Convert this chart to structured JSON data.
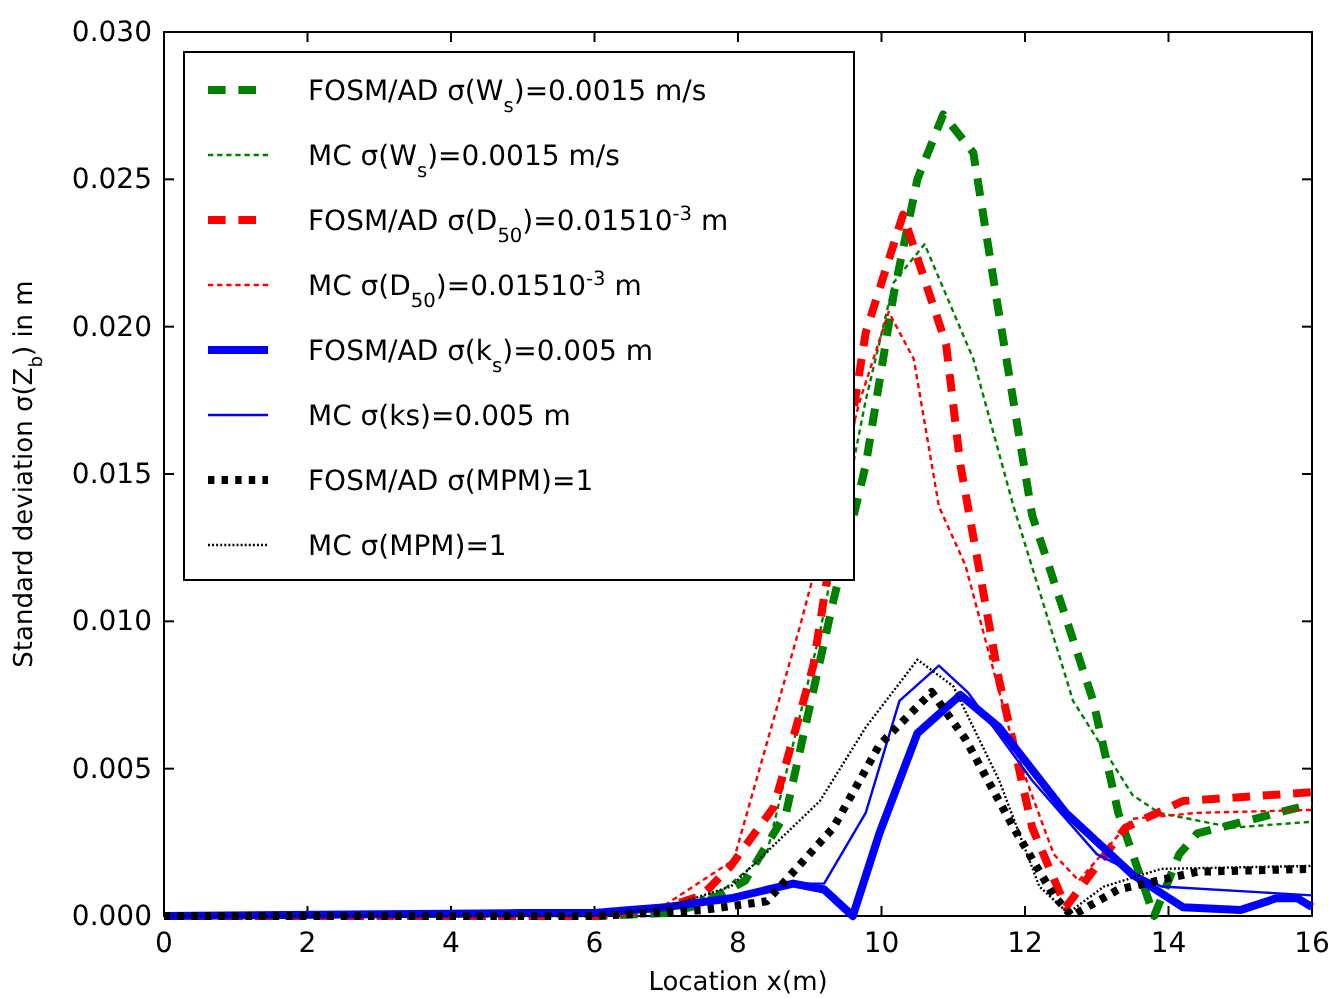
{
  "chart_data": {
    "type": "line",
    "xlabel": "Location x(m)",
    "ylabel": "Standard deviation σ(Z$_{b}$) in m",
    "xlim": [
      0,
      16
    ],
    "ylim": [
      0,
      0.03
    ],
    "xticks": [
      0,
      2,
      4,
      6,
      8,
      10,
      12,
      14,
      16
    ],
    "yticks": [
      {
        "value": 0,
        "label": "0.000"
      },
      {
        "value": 0.005,
        "label": "0.005"
      },
      {
        "value": 0.01,
        "label": "0.010"
      },
      {
        "value": 0.015,
        "label": "0.015"
      },
      {
        "value": 0.02,
        "label": "0.020"
      },
      {
        "value": 0.025,
        "label": "0.025"
      },
      {
        "value": 0.03,
        "label": "0.030"
      }
    ],
    "grid": false,
    "legend": "top left",
    "marker": "none",
    "series": [
      {
        "name": "FOSM/AD σ(W$_{s}$)=0.0015 m/s",
        "color": "#008000",
        "line_style": "dashed",
        "x": [
          0,
          6,
          7,
          7.5,
          8.1,
          8.67,
          9.33,
          9.78,
          10.17,
          10.5,
          10.86,
          11.28,
          11.64,
          12.1,
          12.95,
          13.3,
          13.8,
          14.15,
          14.4,
          15.2,
          16
        ],
        "values": [
          0,
          0,
          0.0001,
          0.0004,
          0.0012,
          0.0035,
          0.0107,
          0.0153,
          0.0211,
          0.025,
          0.0272,
          0.0259,
          0.0204,
          0.0136,
          0.0073,
          0.0035,
          0,
          0.0021,
          0.0028,
          0.0033,
          0.0038
        ]
      },
      {
        "name": "MC σ(W$_{s}$)=0.0015 m/s",
        "color": "#008000",
        "line_style": "dashed",
        "x": [
          0,
          6,
          7,
          7.8,
          8.4,
          9.14,
          9.78,
          10.17,
          10.6,
          11.28,
          11.84,
          12.67,
          13.5,
          13.87,
          14.9,
          16
        ],
        "values": [
          0,
          0,
          0.0002,
          0.0009,
          0.0021,
          0.0096,
          0.0175,
          0.0215,
          0.0228,
          0.0189,
          0.0139,
          0.0073,
          0.0041,
          0.0035,
          0.003,
          0.0032
        ]
      },
      {
        "name": "FOSM/AD σ(D$_{50}$)=0.01510$^{-3}$ m",
        "color": "#ff0000",
        "line_style": "dashed",
        "x": [
          0,
          6,
          7,
          7.5,
          7.9,
          8.5,
          9.05,
          9.78,
          10.3,
          10.9,
          11.1,
          11.64,
          12.1,
          12.57,
          13.4,
          14.2,
          16
        ],
        "values": [
          0,
          0,
          0.0003,
          0.0007,
          0.0017,
          0.0037,
          0.0085,
          0.0198,
          0.0238,
          0.0194,
          0.0153,
          0.008,
          0.003,
          0.0003,
          0.003,
          0.0039,
          0.0042
        ]
      },
      {
        "name": "MC σ(D$_{50}$)=0.01510$^{-3}$ m",
        "color": "#ff0000",
        "line_style": "dashed",
        "x": [
          0,
          6,
          7,
          7.94,
          8.86,
          9.7,
          10.1,
          10.45,
          10.8,
          11.17,
          11.84,
          12.4,
          12.75,
          13.5,
          14.4,
          16
        ],
        "values": [
          0,
          0,
          0.0004,
          0.0019,
          0.0098,
          0.0175,
          0.0205,
          0.0189,
          0.0139,
          0.0119,
          0.0058,
          0.0021,
          0.0012,
          0.0033,
          0.0035,
          0.0036
        ]
      },
      {
        "name": "FOSM/AD σ(k$_{s}$)=0.005 m",
        "color": "#0000ff",
        "line_style": "solid",
        "x": [
          0,
          5,
          6,
          6.5,
          7,
          7.9,
          8.77,
          9.2,
          9.6,
          9.97,
          10.5,
          11.1,
          11.64,
          12.57,
          13.5,
          14.2,
          15,
          15.5,
          15.8,
          16
        ],
        "values": [
          0,
          0.0001,
          0.0001,
          0.0002,
          0.0003,
          0.0006,
          0.0011,
          0.0009,
          0,
          0.0028,
          0.0062,
          0.0075,
          0.0064,
          0.0035,
          0.0014,
          0.0003,
          0.0002,
          0.0006,
          0.0006,
          0.0003
        ]
      },
      {
        "name": "MC σ(ks)=0.005 m",
        "color": "#0000ff",
        "line_style": "solid",
        "x": [
          0,
          5,
          6,
          6.5,
          7,
          7.9,
          8.77,
          9.2,
          9.78,
          10.25,
          10.8,
          11.2,
          12.1,
          13,
          13.9,
          15.3,
          16
        ],
        "values": [
          0,
          0.0001,
          0.0001,
          0.0002,
          0.0003,
          0.0006,
          0.0011,
          0.0011,
          0.0035,
          0.0073,
          0.0085,
          0.0076,
          0.0046,
          0.0021,
          0.001,
          0.0008,
          0.0007
        ]
      },
      {
        "name": "FOSM/AD σ(MPM)=1",
        "color": "#000000",
        "line_style": "dotted",
        "x": [
          0,
          6,
          7.5,
          8.4,
          9.33,
          9.97,
          10.7,
          11.17,
          11.84,
          12.4,
          12.65,
          13.3,
          14.4,
          16
        ],
        "values": [
          0,
          0,
          0.0002,
          0.0005,
          0.003,
          0.0058,
          0.0076,
          0.006,
          0.003,
          0.0007,
          0,
          0.0009,
          0.0015,
          0.0016
        ]
      },
      {
        "name": "MC σ(MPM)=1",
        "color": "#000000",
        "line_style": "dotted",
        "x": [
          0,
          6,
          7,
          7.9,
          9.14,
          9.78,
          10.5,
          11,
          11.64,
          12.2,
          12.6,
          13.1,
          13.9,
          16
        ],
        "values": [
          0,
          0,
          0.0003,
          0.001,
          0.0039,
          0.0064,
          0.0087,
          0.0078,
          0.0046,
          0.001,
          0.0001,
          0.001,
          0.0016,
          0.0017
        ]
      }
    ]
  }
}
